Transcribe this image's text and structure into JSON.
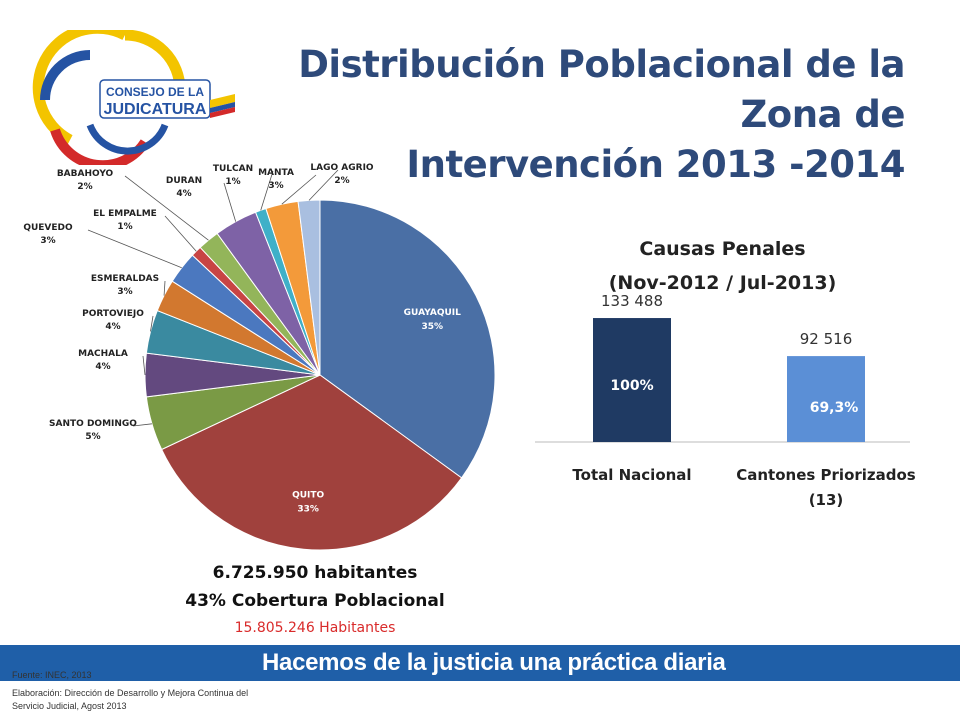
{
  "title": "Distribución Poblacional de la Zona de Intervención 2013 -2014",
  "title_lines": [
    "Distribución Poblacional de la Zona de",
    "Intervención 2013 -2014"
  ],
  "logo": {
    "text_1": "CONSEJO DE LA",
    "text_2": "JUDICATURA"
  },
  "pie_chart": {
    "type": "pie",
    "chart_data": {
      "type": "pie",
      "slices": [
        {
          "label": "GUAYAQUIL",
          "pct_label": "35%",
          "value": 35,
          "color": "#4a6fa5"
        },
        {
          "label": "QUITO",
          "pct_label": "33%",
          "value": 33,
          "color": "#a0413d"
        },
        {
          "label": "SANTO DOMINGO",
          "pct_label": "5%",
          "value": 5,
          "color": "#7a9a45"
        },
        {
          "label": "MACHALA",
          "pct_label": "4%",
          "value": 4,
          "color": "#63497f"
        },
        {
          "label": "PORTOVIEJO",
          "pct_label": "4%",
          "value": 4,
          "color": "#3a8aa0"
        },
        {
          "label": "ESMERALDAS",
          "pct_label": "3%",
          "value": 3,
          "color": "#d2782f"
        },
        {
          "label": "QUEVEDO",
          "pct_label": "3%",
          "value": 3,
          "color": "#4b78bf"
        },
        {
          "label": "EL EMPALME",
          "pct_label": "1%",
          "value": 1,
          "color": "#c84444"
        },
        {
          "label": "BABAHOYO",
          "pct_label": "2%",
          "value": 2,
          "color": "#93b55a"
        },
        {
          "label": "DURAN",
          "pct_label": "4%",
          "value": 4,
          "color": "#7e62a6"
        },
        {
          "label": "TULCAN",
          "pct_label": "1%",
          "value": 1,
          "color": "#3fb0c8"
        },
        {
          "label": "MANTA",
          "pct_label": "3%",
          "value": 3,
          "color": "#f39a3a"
        },
        {
          "label": "LAGO AGRIO",
          "pct_label": "2%",
          "value": 2,
          "color": "#a9bfe0"
        }
      ]
    }
  },
  "bar_chart": {
    "title_1": "Causas Penales",
    "title_2": "(Nov-2012 / Jul-2013)",
    "chart_data": {
      "type": "bar",
      "categories": [
        "Total Nacional",
        "Cantones Priorizados (13)"
      ],
      "category_lines": [
        [
          "Total Nacional"
        ],
        [
          "Cantones Priorizados",
          "(13)"
        ]
      ],
      "values": [
        133488,
        92516
      ],
      "value_labels": [
        "133 488",
        "92 516"
      ],
      "inner_labels": [
        "100%",
        "69,3%"
      ],
      "colors": [
        "#1f3a63",
        "#5b8fd6"
      ],
      "ylim": [
        0,
        140000
      ]
    }
  },
  "summary": {
    "line_1": "6.725.950 habitantes",
    "line_2": "43% Cobertura Poblacional",
    "line_3": "15.805.246 Habitantes"
  },
  "banner_text": "Hacemos de la justicia una práctica diaria",
  "source": {
    "line_1": "Fuente: INEC, 2013",
    "line_2": "Elaboración: Dirección de Desarrollo y Mejora Continua del",
    "line_3": "Servicio Judicial, Agost 2013"
  }
}
